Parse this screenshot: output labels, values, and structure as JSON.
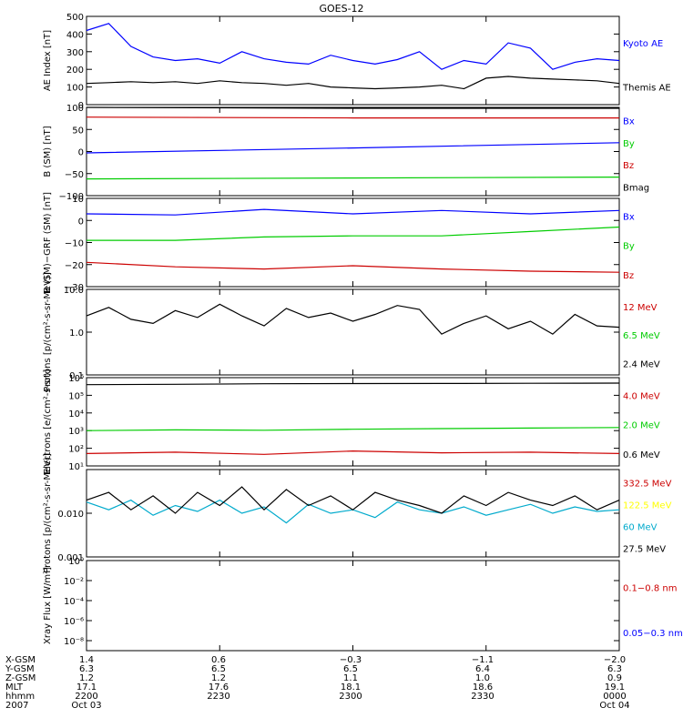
{
  "title": "GOES-12",
  "chart_data": [
    {
      "id": "ae",
      "type": "line",
      "ylabel": "AE Index [nT]",
      "ylim": [
        0,
        500
      ],
      "yscale": "linear",
      "yticks": [
        "0",
        "100",
        "200",
        "300",
        "400",
        "500"
      ],
      "ytick_values": [
        0,
        100,
        200,
        300,
        400,
        500
      ],
      "x": [
        0,
        5,
        10,
        15,
        20,
        25,
        30,
        35,
        40,
        45,
        50,
        55,
        60,
        65,
        70,
        75,
        80,
        85,
        90,
        95,
        100,
        105,
        110,
        115,
        120
      ],
      "series": [
        {
          "name": "Kyoto AE",
          "color": "#0000ff",
          "values": [
            420,
            460,
            330,
            270,
            250,
            260,
            235,
            300,
            260,
            240,
            230,
            280,
            250,
            230,
            255,
            300,
            200,
            250,
            230,
            350,
            320,
            200,
            240,
            260,
            250
          ]
        },
        {
          "name": "Themis AE",
          "color": "#000000",
          "values": [
            120,
            125,
            130,
            125,
            130,
            120,
            135,
            125,
            120,
            110,
            120,
            100,
            95,
            90,
            95,
            100,
            110,
            90,
            150,
            160,
            150,
            145,
            140,
            135,
            120
          ]
        }
      ]
    },
    {
      "id": "bsm",
      "type": "line",
      "ylabel": "B (SM) [nT]",
      "ylim": [
        -100,
        100
      ],
      "yscale": "linear",
      "yticks": [
        "−100",
        "−50",
        "0",
        "50",
        "100"
      ],
      "ytick_values": [
        -100,
        -50,
        0,
        50,
        100
      ],
      "x": [
        0,
        60,
        120
      ],
      "series": [
        {
          "name": "Bx",
          "color": "#0000ff",
          "values": [
            -3,
            8,
            20
          ]
        },
        {
          "name": "By",
          "color": "#00cc00",
          "values": [
            -62,
            -60,
            -58
          ]
        },
        {
          "name": "Bz",
          "color": "#cc0000",
          "values": [
            78,
            76,
            76
          ]
        },
        {
          "name": "Bmag",
          "color": "#000000",
          "values": [
            100,
            98,
            98
          ]
        }
      ]
    },
    {
      "id": "bsm_grf",
      "type": "line",
      "ylabel": "B (SM)−GRF (SM) [nT]",
      "ylim": [
        -30,
        10
      ],
      "yscale": "linear",
      "yticks": [
        "−30",
        "−20",
        "−10",
        "0",
        "10"
      ],
      "ytick_values": [
        -30,
        -20,
        -10,
        0,
        10
      ],
      "x": [
        0,
        20,
        40,
        60,
        80,
        100,
        120
      ],
      "series": [
        {
          "name": "Bx",
          "color": "#0000ff",
          "values": [
            3,
            2.5,
            5,
            3,
            4.5,
            3,
            4.5
          ]
        },
        {
          "name": "By",
          "color": "#00cc00",
          "values": [
            -9,
            -9,
            -7.5,
            -7,
            -7,
            -5,
            -3
          ]
        },
        {
          "name": "Bz",
          "color": "#cc0000",
          "values": [
            -19,
            -21,
            -22,
            -20.5,
            -22,
            -23,
            -23.5
          ]
        }
      ]
    },
    {
      "id": "protons1",
      "type": "line",
      "ylabel": "Protons [p/(cm²-s-sr-MeV)]",
      "ylim": [
        0.1,
        10
      ],
      "yscale": "log",
      "yticks": [
        "0.1",
        "1.0",
        "10.0"
      ],
      "ytick_values": [
        0.1,
        1,
        10
      ],
      "x": [
        0,
        5,
        10,
        15,
        20,
        25,
        30,
        35,
        40,
        45,
        50,
        55,
        60,
        65,
        70,
        75,
        80,
        85,
        90,
        95,
        100,
        105,
        110,
        115,
        120
      ],
      "series": [
        {
          "name": "12 MeV",
          "color": "#cc0000",
          "values": [
            null,
            null,
            null,
            null,
            null,
            null,
            null,
            null,
            null,
            null,
            null,
            null,
            null,
            null,
            null,
            null,
            null,
            null,
            null,
            null,
            null,
            null,
            null,
            null,
            null
          ]
        },
        {
          "name": "6.5 MeV",
          "color": "#00cc00",
          "values": [
            null,
            null,
            null,
            null,
            null,
            null,
            null,
            null,
            null,
            null,
            null,
            null,
            null,
            null,
            null,
            null,
            null,
            null,
            null,
            null,
            null,
            null,
            null,
            null,
            null
          ]
        },
        {
          "name": "2.4 MeV",
          "color": "#000000",
          "values": [
            2.4,
            3.8,
            2.0,
            1.6,
            3.2,
            2.2,
            4.5,
            2.4,
            1.4,
            3.6,
            2.2,
            2.8,
            1.8,
            2.6,
            4.2,
            3.4,
            0.9,
            1.6,
            2.4,
            1.2,
            1.8,
            0.9,
            2.6,
            1.4,
            1.3
          ]
        }
      ]
    },
    {
      "id": "electrons",
      "type": "line",
      "ylabel": "Electrons [e/(cm²-s-sr)]",
      "ylim": [
        10,
        1000000
      ],
      "yscale": "log",
      "yticks": [
        "10¹",
        "10²",
        "10³",
        "10⁴",
        "10⁵",
        "10⁶"
      ],
      "ytick_values": [
        10,
        100,
        1000,
        10000,
        100000,
        1000000
      ],
      "x": [
        0,
        20,
        40,
        60,
        80,
        100,
        120
      ],
      "series": [
        {
          "name": "4.0 MeV",
          "color": "#cc0000",
          "values": [
            50,
            60,
            45,
            70,
            55,
            60,
            50
          ]
        },
        {
          "name": "2.0 MeV",
          "color": "#00cc00",
          "values": [
            1000,
            1100,
            1050,
            1200,
            1300,
            1400,
            1500
          ]
        },
        {
          "name": "0.6 MeV",
          "color": "#000000",
          "values": [
            400000,
            420000,
            450000,
            460000,
            470000,
            480000,
            490000
          ]
        }
      ]
    },
    {
      "id": "protons2",
      "type": "line",
      "ylabel": "Protons [p/(cm²-s-sr-MeV)]",
      "ylim": [
        0.001,
        0.1
      ],
      "yscale": "log",
      "yticks": [
        "0.001",
        "0.010"
      ],
      "ytick_values": [
        0.001,
        0.01
      ],
      "x": [
        0,
        5,
        10,
        15,
        20,
        25,
        30,
        35,
        40,
        45,
        50,
        55,
        60,
        65,
        70,
        75,
        80,
        85,
        90,
        95,
        100,
        105,
        110,
        115,
        120
      ],
      "series": [
        {
          "name": "332.5 MeV",
          "color": "#cc0000",
          "values": [
            null,
            null,
            null,
            null,
            null,
            null,
            null,
            null,
            null,
            null,
            null,
            null,
            null,
            null,
            null,
            null,
            null,
            null,
            null,
            null,
            null,
            null,
            null,
            null,
            null
          ]
        },
        {
          "name": "122.5 MeV",
          "color": "#ffff00",
          "values": [
            null,
            null,
            null,
            null,
            null,
            null,
            null,
            null,
            null,
            null,
            null,
            null,
            null,
            null,
            null,
            null,
            null,
            null,
            null,
            null,
            null,
            null,
            null,
            null,
            null
          ]
        },
        {
          "name": "60 MeV",
          "color": "#00aacc",
          "values": [
            0.018,
            0.012,
            0.02,
            0.009,
            0.015,
            0.011,
            0.02,
            0.01,
            0.014,
            0.006,
            0.016,
            0.01,
            0.012,
            0.008,
            0.018,
            0.012,
            0.01,
            0.014,
            0.009,
            0.012,
            0.016,
            0.01,
            0.014,
            0.011,
            0.012
          ]
        },
        {
          "name": "27.5 MeV",
          "color": "#000000",
          "values": [
            0.02,
            0.03,
            0.012,
            0.025,
            0.01,
            0.03,
            0.015,
            0.04,
            0.012,
            0.035,
            0.015,
            0.025,
            0.012,
            0.03,
            0.02,
            0.015,
            0.01,
            0.025,
            0.015,
            0.03,
            0.02,
            0.015,
            0.025,
            0.012,
            0.02
          ]
        }
      ]
    },
    {
      "id": "xray",
      "type": "line",
      "ylabel": "Xray Flux [W/m²]",
      "ylim": [
        1e-09,
        1
      ],
      "yscale": "log",
      "yticks": [
        "10⁻⁸",
        "10⁻⁶",
        "10⁻⁴",
        "10⁻²",
        "10⁰"
      ],
      "ytick_values": [
        1e-08,
        1e-06,
        0.0001,
        0.01,
        1
      ],
      "x": [],
      "series": [
        {
          "name": "0.1−0.8 nm",
          "color": "#cc0000",
          "values": []
        },
        {
          "name": "0.05−0.3 nm",
          "color": "#0000ff",
          "values": []
        }
      ]
    }
  ],
  "footer": {
    "rows": [
      {
        "label": "X-GSM",
        "values": [
          "1.4",
          "0.6",
          "−0.3",
          "−1.1",
          "−2.0"
        ]
      },
      {
        "label": "Y-GSM",
        "values": [
          "6.3",
          "6.5",
          "6.5",
          "6.4",
          "6.3"
        ]
      },
      {
        "label": "Z-GSM",
        "values": [
          "1.2",
          "1.2",
          "1.1",
          "1.0",
          "0.9"
        ]
      },
      {
        "label": "MLT",
        "values": [
          "17.1",
          "17.6",
          "18.1",
          "18.6",
          "19.1"
        ]
      },
      {
        "label": "hhmm",
        "values": [
          "2200",
          "2230",
          "2300",
          "2330",
          "0000"
        ]
      },
      {
        "label": "2007",
        "values": [
          "Oct 03",
          "",
          "",
          "",
          "Oct 04"
        ]
      }
    ]
  }
}
